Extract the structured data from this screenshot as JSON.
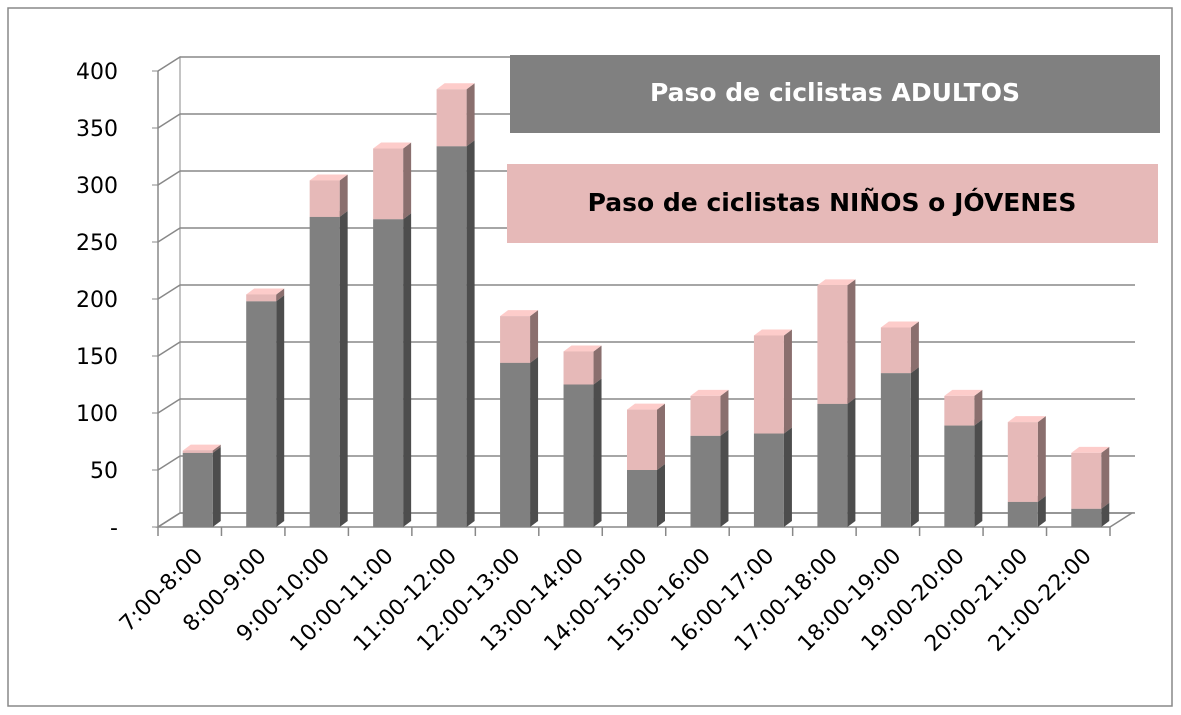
{
  "chart_data": {
    "type": "bar3d_stacked",
    "categories": [
      "7:00-8:00",
      "8:00-9:00",
      "9:00-10:00",
      "10:00-11:00",
      "11:00-12:00",
      "12:00-13:00",
      "13:00-14:00",
      "14:00-15:00",
      "15:00-16:00",
      "16:00-17:00",
      "17:00-18:00",
      "18:00-19:00",
      "19:00-20:00",
      "20:00-21:00",
      "21:00-22:00"
    ],
    "series": [
      {
        "name": "Paso de ciclistas ADULTOS",
        "color": "#808080",
        "values": [
          65,
          198,
          272,
          270,
          334,
          144,
          125,
          50,
          80,
          82,
          108,
          135,
          89,
          22,
          16
        ]
      },
      {
        "name": "Paso de ciclistas NIÑOS o JÓVENES",
        "color": "#e6b9b8",
        "values": [
          2,
          6,
          32,
          62,
          50,
          41,
          29,
          53,
          35,
          86,
          104,
          40,
          26,
          70,
          49
        ]
      }
    ],
    "ylim": [
      0,
      400
    ],
    "yticks": [
      {
        "value": 0,
        "label": "-"
      },
      50,
      100,
      150,
      200,
      250,
      300,
      350,
      400
    ],
    "grid": true
  }
}
